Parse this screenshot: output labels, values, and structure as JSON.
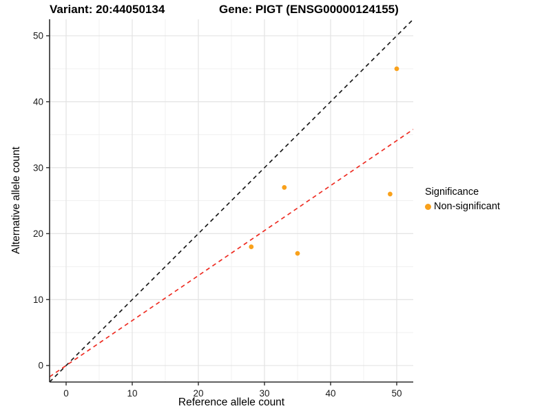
{
  "chart_data": {
    "type": "scatter",
    "title_left": "Variant: 20:44050134",
    "title_right": "Gene: PIGT (ENSG00000124155)",
    "xlabel": "Reference allele count",
    "ylabel": "Alternative allele count",
    "xlim": [
      -2.5,
      52.5
    ],
    "ylim": [
      -2.5,
      52.5
    ],
    "x_ticks": [
      0,
      10,
      20,
      30,
      40,
      50
    ],
    "y_ticks": [
      0,
      10,
      20,
      30,
      40,
      50
    ],
    "x_minor_ticks": [
      5,
      15,
      25,
      35,
      45
    ],
    "y_minor_ticks": [
      5,
      15,
      25,
      35,
      45
    ],
    "grid": true,
    "legend_position": "right",
    "points": [
      {
        "x": 28,
        "y": 18,
        "group": "Non-significant"
      },
      {
        "x": 33,
        "y": 27,
        "group": "Non-significant"
      },
      {
        "x": 35,
        "y": 17,
        "group": "Non-significant"
      },
      {
        "x": 49,
        "y": 26,
        "group": "Non-significant"
      },
      {
        "x": 50,
        "y": 45,
        "group": "Non-significant"
      }
    ],
    "lines": [
      {
        "name": "identity-line",
        "slope": 1,
        "intercept": 0,
        "color": "#1A1A1A",
        "style": "dashed"
      },
      {
        "name": "ratio-line",
        "slope": 0.682,
        "intercept": 0,
        "color": "#EE2C22",
        "style": "dashed"
      }
    ],
    "legend": {
      "title": "Significance",
      "items": [
        {
          "label": "Non-significant",
          "color": "#F9A11B"
        }
      ]
    },
    "style": {
      "point_color": "#F9A11B",
      "axis_line_color": "#2B2B2B",
      "tick_label_color": "#1A1A1A",
      "major_grid_color": "#E3E3E3",
      "minor_grid_color": "#F0F0F0",
      "background": "#FFFFFF"
    }
  }
}
